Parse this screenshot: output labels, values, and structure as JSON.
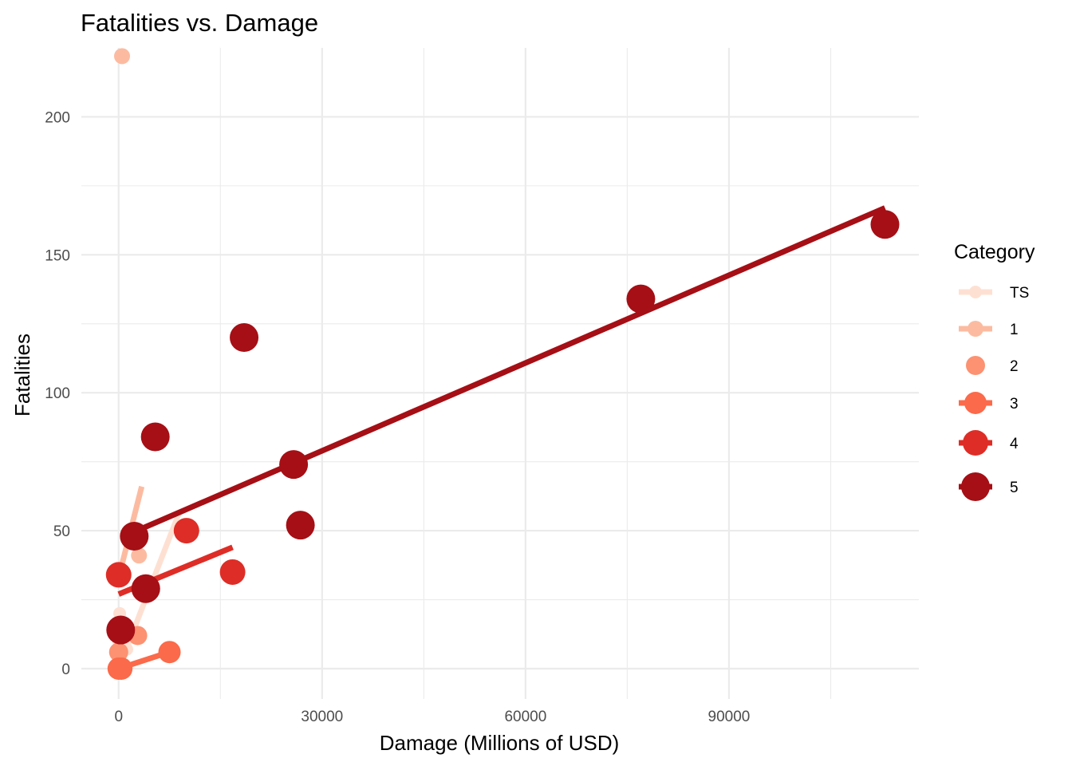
{
  "chart_data": {
    "type": "scatter",
    "title": "Fatalities vs. Damage",
    "xlabel": "Damage (Millions of USD)",
    "ylabel": "Fatalities",
    "xlim": [
      -5500,
      118000
    ],
    "ylim": [
      -11,
      225
    ],
    "x_ticks": [
      0,
      30000,
      60000,
      90000
    ],
    "x_tick_labels": [
      "0",
      "30000",
      "60000",
      "90000"
    ],
    "x_minor_ticks": [
      15000,
      45000,
      75000,
      105000
    ],
    "y_ticks": [
      0,
      50,
      100,
      150,
      200
    ],
    "y_tick_labels": [
      "0",
      "50",
      "100",
      "150",
      "200"
    ],
    "y_minor_ticks": [
      25,
      75,
      125,
      175
    ],
    "grid": true,
    "legend": {
      "title": "Category",
      "position": "right"
    },
    "series": [
      {
        "name": "TS",
        "color": "#fee0d2",
        "point_size": 8,
        "points": [
          [
            150,
            20
          ],
          [
            0,
            10
          ],
          [
            0,
            5
          ],
          [
            1200,
            7
          ],
          [
            200,
            3
          ]
        ],
        "trend": [
          [
            0,
            0
          ],
          [
            9000,
            57
          ]
        ]
      },
      {
        "name": "1",
        "color": "#fcbba1",
        "point_size": 10,
        "points": [
          [
            500,
            222
          ],
          [
            3000,
            41
          ]
        ],
        "trend": [
          [
            0,
            33
          ],
          [
            3400,
            66
          ]
        ]
      },
      {
        "name": "2",
        "color": "#fc9272",
        "point_size": 12,
        "points": [
          [
            2800,
            12
          ],
          [
            0,
            6
          ]
        ],
        "trend": null
      },
      {
        "name": "3",
        "color": "#fb6a4a",
        "point_size": 14,
        "points": [
          [
            7500,
            6
          ],
          [
            400,
            0
          ],
          [
            0,
            0
          ]
        ],
        "trend": [
          [
            0,
            0
          ],
          [
            7500,
            6
          ]
        ]
      },
      {
        "name": "4",
        "color": "#de2d26",
        "point_size": 16,
        "points": [
          [
            10000,
            50
          ],
          [
            16800,
            35
          ],
          [
            0,
            34
          ]
        ],
        "trend": [
          [
            0,
            27
          ],
          [
            16800,
            44
          ]
        ]
      },
      {
        "name": "5",
        "color": "#a50f15",
        "point_size": 18,
        "points": [
          [
            113000,
            161
          ],
          [
            77000,
            134
          ],
          [
            18500,
            120
          ],
          [
            5400,
            84
          ],
          [
            25800,
            74
          ],
          [
            26800,
            52
          ],
          [
            2300,
            48
          ],
          [
            4000,
            29
          ],
          [
            300,
            14
          ]
        ],
        "trend": [
          [
            800,
            48
          ],
          [
            113000,
            167
          ]
        ]
      }
    ]
  }
}
